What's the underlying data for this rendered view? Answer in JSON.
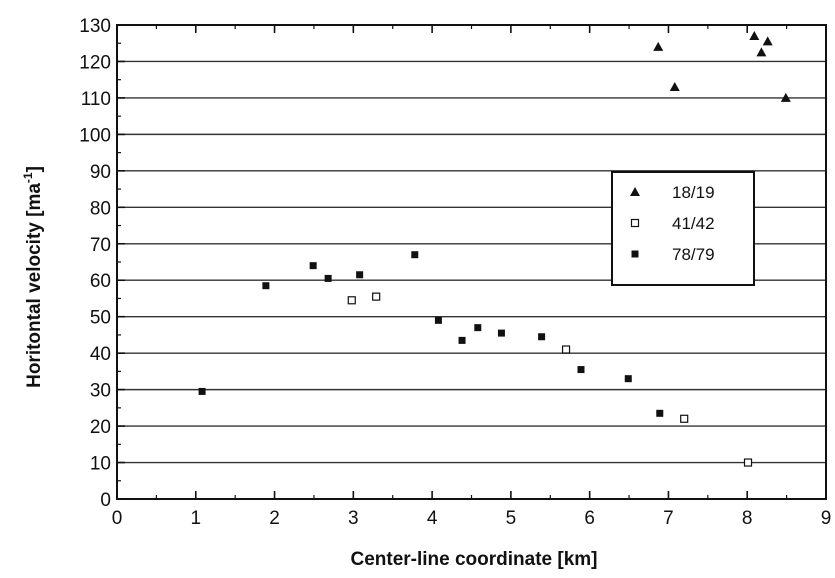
{
  "chart_data": {
    "type": "scatter",
    "xlabel": "Center-line coordinate [km]",
    "ylabel_main": "Horitontal velocity [ma",
    "ylabel_sup": "-1",
    "ylabel_end": "]",
    "xlim": [
      0,
      9
    ],
    "ylim": [
      0,
      130
    ],
    "x_ticks": [
      0,
      1,
      2,
      3,
      4,
      5,
      6,
      7,
      8,
      9
    ],
    "y_ticks": [
      0,
      10,
      20,
      30,
      40,
      50,
      60,
      70,
      80,
      90,
      100,
      110,
      120,
      130
    ],
    "grid": "horizontal",
    "legend_position": "middle-right",
    "series": [
      {
        "name": "18/19",
        "marker": "triangle",
        "color": "#111111",
        "points": [
          [
            6.87,
            124
          ],
          [
            7.08,
            113
          ],
          [
            8.09,
            127
          ],
          [
            8.18,
            122.5
          ],
          [
            8.26,
            125.5
          ],
          [
            8.49,
            110
          ]
        ]
      },
      {
        "name": "41/42",
        "marker": "open-square",
        "color": "#111111",
        "points": [
          [
            2.98,
            54.5
          ],
          [
            3.29,
            55.5
          ],
          [
            5.7,
            41
          ],
          [
            7.2,
            22
          ],
          [
            8.01,
            10
          ]
        ]
      },
      {
        "name": "78/79",
        "marker": "filled-square",
        "color": "#111111",
        "points": [
          [
            1.08,
            29.5
          ],
          [
            1.89,
            58.5
          ],
          [
            2.49,
            64
          ],
          [
            2.68,
            60.5
          ],
          [
            3.08,
            61.5
          ],
          [
            3.78,
            67
          ],
          [
            4.08,
            49
          ],
          [
            4.38,
            43.5
          ],
          [
            4.58,
            47
          ],
          [
            4.88,
            45.5
          ],
          [
            5.39,
            44.5
          ],
          [
            5.89,
            35.5
          ],
          [
            6.49,
            33
          ],
          [
            6.89,
            23.5
          ]
        ]
      }
    ]
  }
}
